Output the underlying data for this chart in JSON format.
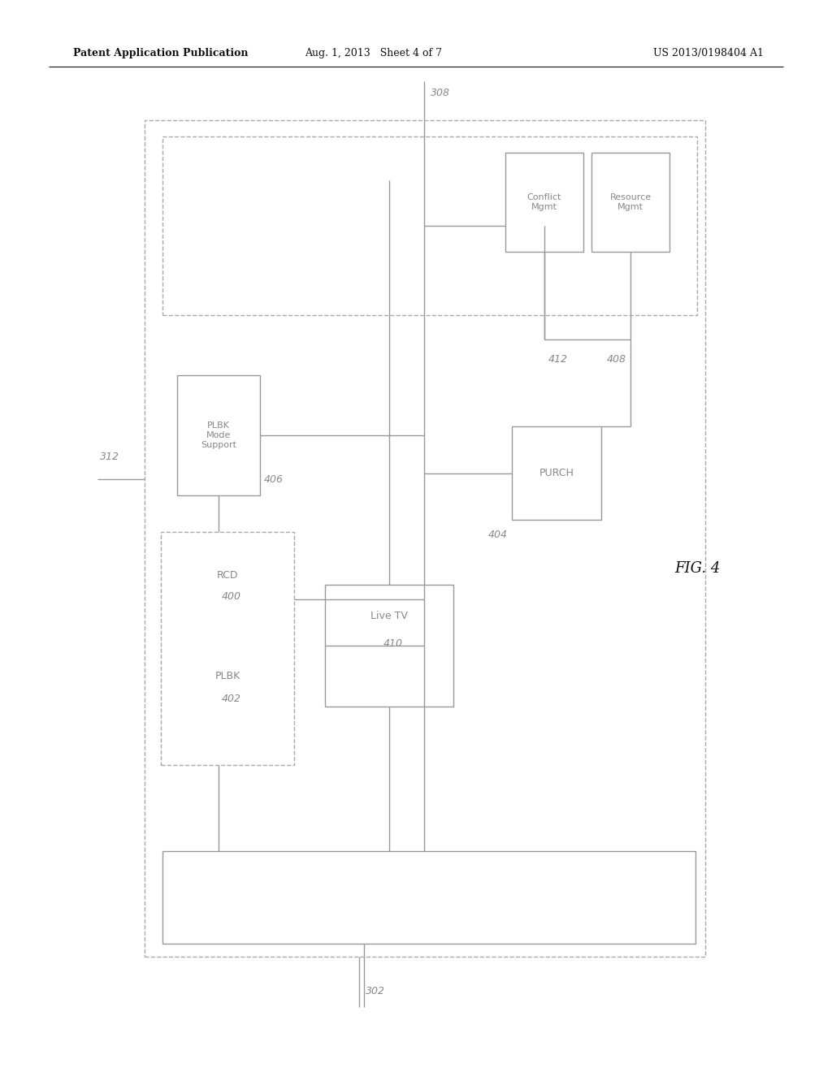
{
  "bg_color": "#ffffff",
  "line_color": "#999999",
  "text_color": "#888888",
  "fig_label": "FIG. 4",
  "header_left": "Patent Application Publication",
  "header_mid": "Aug. 1, 2013   Sheet 4 of 7",
  "header_right": "US 2013/0198404 A1",
  "ref_308": "308",
  "ref_302": "302",
  "ref_312": "312",
  "ref_412": "412",
  "ref_408": "408",
  "ref_404": "404",
  "ref_406": "406",
  "ref_400": "400",
  "ref_402": "402",
  "ref_410": "410"
}
